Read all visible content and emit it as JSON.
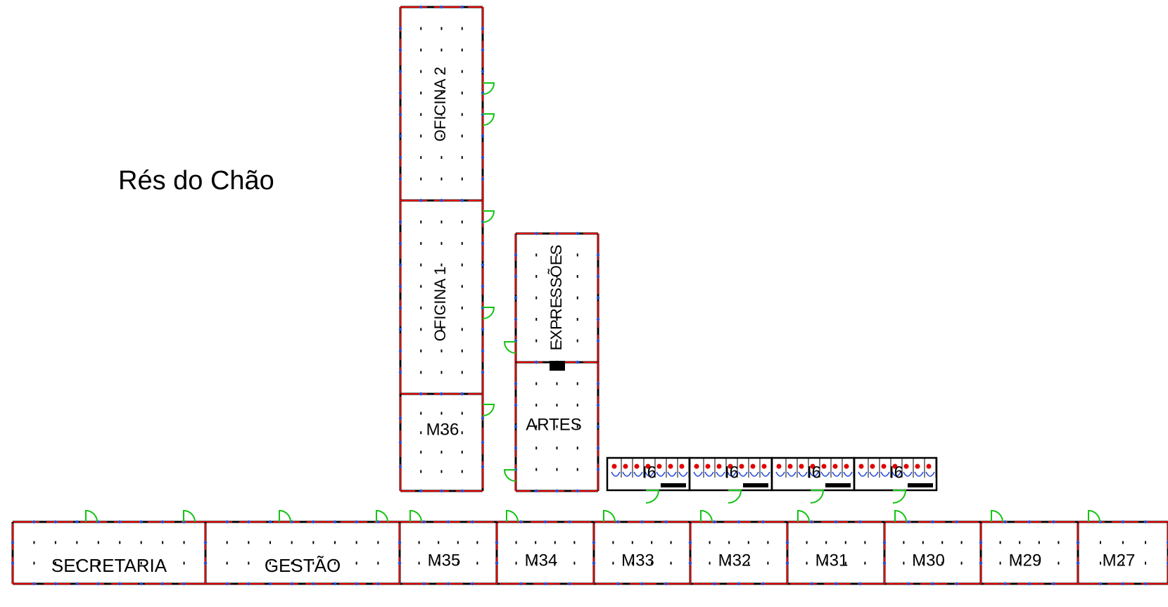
{
  "floor_title": "Rés do Chão",
  "rooms": {
    "oficina_2": "OFICINA 2",
    "oficina_1": "OFICINA 1",
    "m36": "M36",
    "expressoes": "EXPRESSÕES",
    "artes": "ARTES",
    "wc": [
      "I6",
      "I6",
      "I6",
      "I6"
    ],
    "bottom_row": [
      "SECRETARIA",
      "GESTÃO",
      "M35",
      "M34",
      "M33",
      "M32",
      "M31",
      "M30",
      "M29",
      "M27"
    ]
  },
  "colors": {
    "wall": "#000000",
    "wall_accent": "#e00000",
    "window": "#2a4fd6",
    "door": "#13c413",
    "sanitary": "#2a4fd6"
  }
}
